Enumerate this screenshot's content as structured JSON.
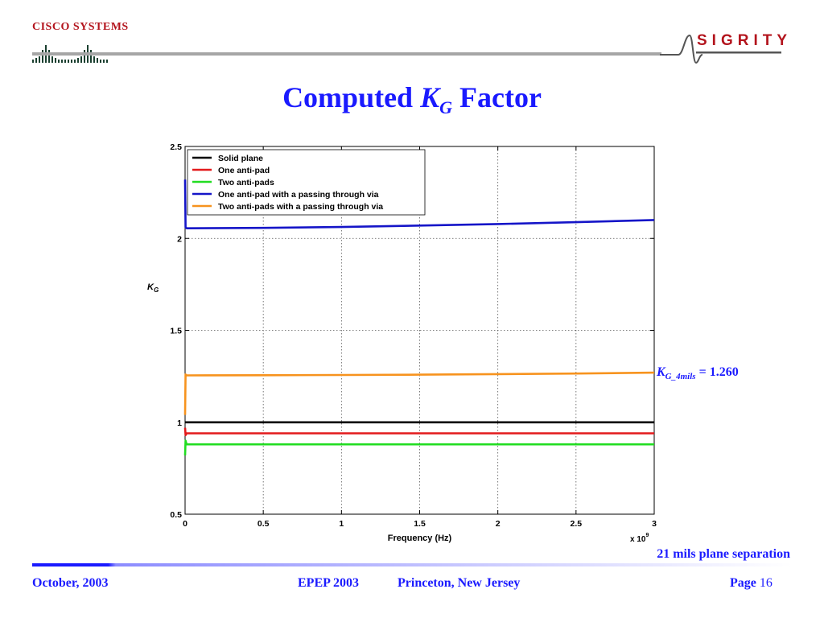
{
  "header": {
    "cisco_text": "CISCO SYSTEMS",
    "sigrity_text": "SIGRITY"
  },
  "title": {
    "prefix": "Computed ",
    "k": "K",
    "sub": "G",
    "suffix": " Factor"
  },
  "chart_data": {
    "type": "line",
    "title": "",
    "xlabel": "Frequency (Hz)",
    "ylabel": "K",
    "ylabel_sub": "G",
    "x_multiplier": "x 10",
    "x_multiplier_exp": "9",
    "xlim": [
      0,
      3
    ],
    "ylim": [
      0.5,
      2.5
    ],
    "xticks": [
      0,
      0.5,
      1,
      1.5,
      2,
      2.5,
      3
    ],
    "xtick_labels": [
      "0",
      "0.5",
      "1",
      "1.5",
      "2",
      "2.5",
      "3"
    ],
    "yticks": [
      0.5,
      1,
      1.5,
      2,
      2.5
    ],
    "ytick_labels": [
      "0.5",
      "1",
      "1.5",
      "2",
      "2.5"
    ],
    "grid": true,
    "legend_position": "top-left",
    "series": [
      {
        "name": "Solid plane",
        "color": "#000000",
        "x": [
          0,
          3
        ],
        "y": [
          1.0,
          1.0
        ]
      },
      {
        "name": "One anti-pad",
        "color": "#e31a1c",
        "x": [
          0,
          0.003,
          0.01,
          3
        ],
        "y": [
          0.97,
          0.93,
          0.94,
          0.94
        ]
      },
      {
        "name": "Two anti-pads",
        "color": "#22dd22",
        "x": [
          0,
          0.003,
          0.01,
          3
        ],
        "y": [
          0.82,
          0.9,
          0.88,
          0.88
        ]
      },
      {
        "name": "One anti-pad with a passing through via",
        "color": "#1515c8",
        "x": [
          0,
          0.003,
          0.01,
          0.5,
          1,
          1.5,
          2,
          2.5,
          3
        ],
        "y": [
          2.32,
          2.06,
          2.055,
          2.057,
          2.062,
          2.07,
          2.078,
          2.088,
          2.1
        ]
      },
      {
        "name": "Two anti-pads with a passing through via",
        "color": "#f7931e",
        "x": [
          0,
          0.003,
          0.01,
          0.5,
          1,
          1.5,
          2,
          2.5,
          3
        ],
        "y": [
          1.04,
          1.26,
          1.255,
          1.256,
          1.257,
          1.259,
          1.262,
          1.265,
          1.27
        ]
      }
    ]
  },
  "annotation": {
    "k": "K",
    "sub": "G_4mils",
    "value": " = 1.260"
  },
  "note": "21 mils plane separation",
  "footer": {
    "date": "October, 2003",
    "conference": "EPEP 2003",
    "location": "Princeton, New Jersey",
    "page_label": "Page",
    "page_number": "16"
  },
  "colors": {
    "accent_blue": "#1a1aff",
    "brand_red": "#b3141d"
  }
}
